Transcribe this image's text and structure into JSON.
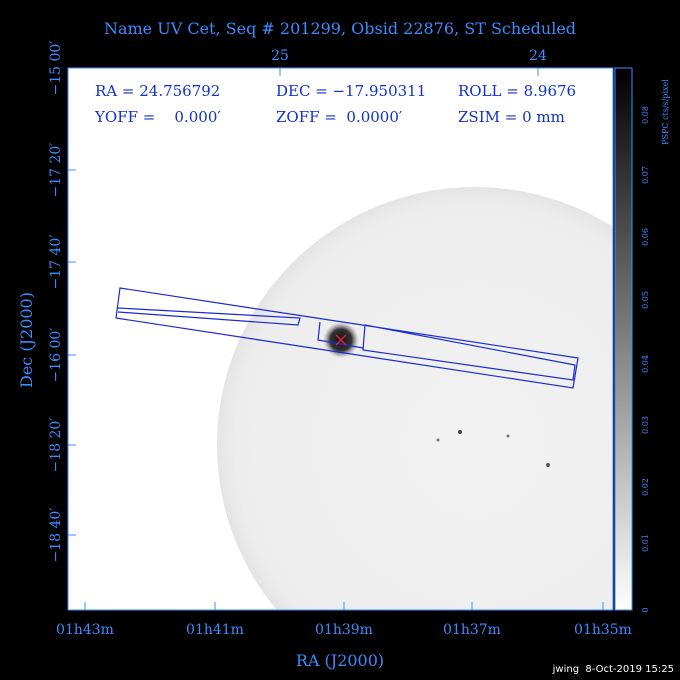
{
  "title": "Name UV Cet, Seq # 201299, Obsid 22876, ST Scheduled",
  "info": {
    "ra": "RA = 24.756792",
    "dec": "DEC = −17.950311",
    "roll": "ROLL = 8.9676",
    "yoff": "YOFF =    0.000′",
    "zoff": "ZOFF =  0.0000′",
    "zsim": "ZSIM = 0 mm"
  },
  "top_axis": {
    "ticks": [
      "25",
      "24"
    ]
  },
  "left_axis": {
    "label": "Dec (J2000)",
    "ticks": [
      "−15 00′",
      "−17 20′",
      "−17 40′",
      "−16 00′",
      "−18 20′",
      "−18 40′"
    ]
  },
  "bottom_axis": {
    "label": "RA (J2000)",
    "ticks": [
      "01h43m",
      "01h41m",
      "01h39m",
      "01h37m",
      "01h35m"
    ]
  },
  "colorbar": {
    "label": "PSPC cts/s/pixel",
    "ticks": [
      "0",
      "0.01",
      "0.02",
      "0.03",
      "0.04",
      "0.05",
      "0.06",
      "0.07",
      "0.08"
    ]
  },
  "footer": "jwing  8-Oct-2019 15:25"
}
